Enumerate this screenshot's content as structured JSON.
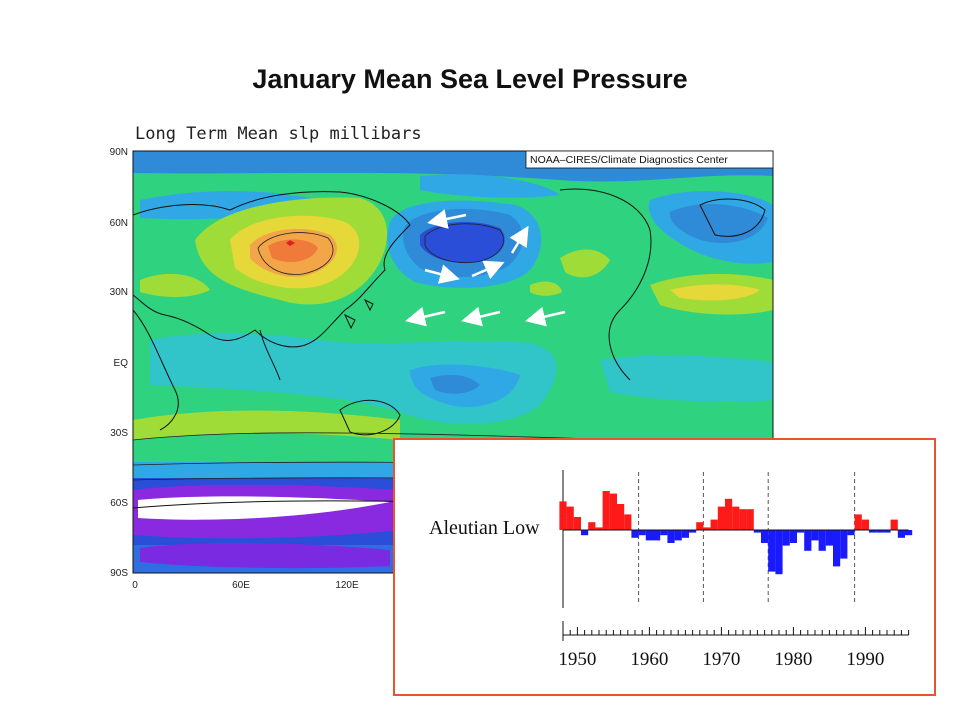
{
  "title": "January Mean Sea Level Pressure",
  "map": {
    "title": "Long Term Mean slp millibars",
    "credit": "NOAA–CIRES/Climate Diagnostics Center",
    "lat_labels": [
      "90N",
      "60N",
      "30N",
      "EQ",
      "30S",
      "60S",
      "90S"
    ],
    "lon_labels": [
      "0",
      "60E",
      "120E"
    ]
  },
  "chart_data": {
    "type": "bar",
    "label": "Aleutian Low",
    "x": [
      1948,
      1949,
      1950,
      1951,
      1952,
      1953,
      1954,
      1955,
      1956,
      1957,
      1958,
      1959,
      1960,
      1961,
      1962,
      1963,
      1964,
      1965,
      1966,
      1967,
      1968,
      1969,
      1970,
      1971,
      1972,
      1973,
      1974,
      1975,
      1976,
      1977,
      1978,
      1979,
      1980,
      1981,
      1982,
      1983,
      1984,
      1985,
      1986,
      1987,
      1988,
      1989,
      1990,
      1991,
      1992,
      1993,
      1994,
      1995,
      1996,
      1997
    ],
    "values": [
      1.1,
      0.9,
      0.5,
      -0.2,
      0.3,
      0.1,
      1.5,
      1.4,
      1.0,
      0.6,
      -0.3,
      -0.2,
      -0.4,
      -0.4,
      -0.2,
      -0.5,
      -0.4,
      -0.3,
      -0.1,
      0.3,
      0.1,
      0.4,
      0.9,
      1.2,
      0.9,
      0.8,
      0.8,
      -0.1,
      -0.5,
      -1.6,
      -1.7,
      -0.6,
      -0.5,
      -0.1,
      -0.8,
      -0.4,
      -0.8,
      -0.6,
      -1.4,
      -1.1,
      -0.2,
      0.6,
      0.4,
      -0.1,
      -0.1,
      -0.1,
      0.4,
      -0.3,
      -0.2,
      0.0
    ],
    "dashed_lines_at": [
      1958.5,
      1967.5,
      1976.5,
      1988.5
    ],
    "tick_labels": [
      "1950",
      "1960",
      "1970",
      "1980",
      "1990"
    ],
    "colors": {
      "positive": "#ff1a1a",
      "negative": "#1a1aff"
    }
  }
}
